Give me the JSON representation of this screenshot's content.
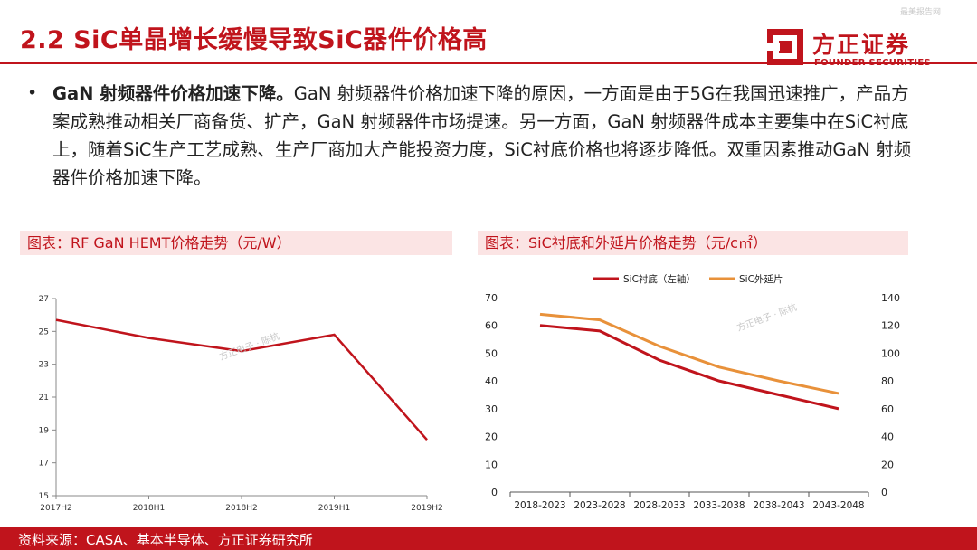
{
  "header": {
    "title": "2.2 SiC单晶增长缓慢导致SiC器件价格高",
    "corner_text": "最美报告网",
    "logo_cn": "方正证券",
    "logo_en": "FOUNDER SECURITIES"
  },
  "body": {
    "bullet": "•",
    "lead": "GaN 射频器件价格加速下降。",
    "text": "GaN 射频器件价格加速下降的原因，一方面是由于5G在我国迅速推广，产品方案成熟推动相关厂商备货、扩产，GaN 射频器件市场提速。另一方面，GaN 射频器件成本主要集中在SiC衬底上，随着SiC生产工艺成熟、生产厂商加大产能投资力度，SiC衬底价格也将逐步降低。双重因素推动GaN 射频器件价格加速下降。"
  },
  "captions": {
    "left": "图表：RF GaN HEMT价格走势（元/W）",
    "right": "图表：SiC衬底和外延片价格走势（元/c㎡）"
  },
  "watermark": "方正电子 · 陈杭",
  "footer": {
    "source": "资料来源：CASA、基本半导体、方正证券研究所"
  },
  "colors": {
    "brand": "#c0141c",
    "series_red": "#c0141c",
    "series_orange": "#e8913a",
    "caption_bg": "#fbe4e4"
  },
  "chart_data": [
    {
      "type": "line",
      "x": [
        "2017H2",
        "2018H1",
        "2018H2",
        "2019H1",
        "2019H2"
      ],
      "series": [
        {
          "values": [
            25.7,
            24.6,
            23.8,
            24.8,
            18.4
          ]
        }
      ],
      "ylim": [
        15,
        27
      ],
      "yticks": [
        15,
        17,
        19,
        21,
        23,
        25,
        27
      ],
      "grid": false,
      "legend": "none"
    },
    {
      "type": "line",
      "x": [
        "2018-2023",
        "2023-2028",
        "2028-2033",
        "2033-2038",
        "2038-2043",
        "2043-2048"
      ],
      "series": [
        {
          "name": "SiC衬底（左轴）",
          "axis": "left",
          "values": [
            60,
            58,
            47.5,
            40,
            35,
            30
          ]
        },
        {
          "name": "SiC外延片",
          "axis": "right",
          "values": [
            128,
            124,
            105,
            90,
            80,
            71
          ]
        }
      ],
      "ylim_left": [
        0,
        70
      ],
      "yticks_left": [
        0,
        10,
        20,
        30,
        40,
        50,
        60,
        70
      ],
      "ylim_right": [
        0,
        140
      ],
      "yticks_right": [
        0,
        20,
        40,
        60,
        80,
        100,
        120,
        140
      ],
      "grid": false,
      "legend": "top-center"
    }
  ]
}
